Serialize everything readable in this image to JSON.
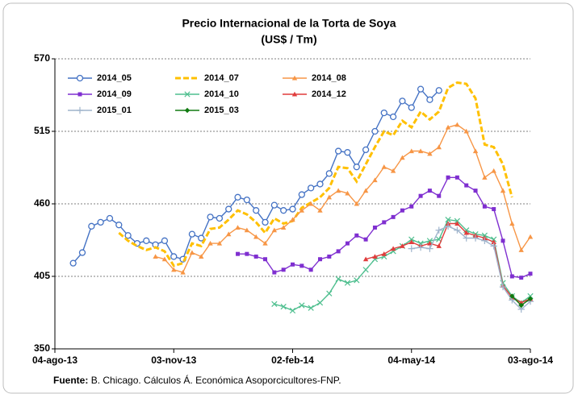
{
  "chart_data": {
    "type": "line",
    "title": "Precio Internacional de la Torta de Soya",
    "subtitle": "(US$ / Tm)",
    "source_label": "Fuente:",
    "source": "B. Chicago. Cálculos Á. Económica Asoporcicultores-FNP.",
    "x": [
      "2013-08-18",
      "2013-08-25",
      "2013-09-01",
      "2013-09-08",
      "2013-09-15",
      "2013-09-22",
      "2013-09-29",
      "2013-10-06",
      "2013-10-13",
      "2013-10-20",
      "2013-10-27",
      "2013-11-03",
      "2013-11-10",
      "2013-11-17",
      "2013-11-24",
      "2013-12-01",
      "2013-12-08",
      "2013-12-15",
      "2013-12-22",
      "2013-12-29",
      "2014-01-05",
      "2014-01-12",
      "2014-01-19",
      "2014-01-26",
      "2014-02-02",
      "2014-02-09",
      "2014-02-16",
      "2014-02-23",
      "2014-03-02",
      "2014-03-09",
      "2014-03-16",
      "2014-03-23",
      "2014-03-30",
      "2014-04-06",
      "2014-04-13",
      "2014-04-20",
      "2014-04-27",
      "2014-05-04",
      "2014-05-11",
      "2014-05-18",
      "2014-05-25",
      "2014-06-01",
      "2014-06-08",
      "2014-06-15",
      "2014-06-22",
      "2014-06-29",
      "2014-07-06",
      "2014-07-13",
      "2014-07-20",
      "2014-07-27",
      "2014-08-03"
    ],
    "xlim": [
      "2013-08-04",
      "2014-08-03"
    ],
    "xticks": [
      {
        "value": "2013-08-04",
        "label": "04-ago-13"
      },
      {
        "value": "2013-11-03",
        "label": "03-nov-13"
      },
      {
        "value": "2014-02-02",
        "label": "02-feb-14"
      },
      {
        "value": "2014-05-04",
        "label": "04-may-14"
      },
      {
        "value": "2014-08-03",
        "label": "03-ago-14"
      }
    ],
    "ylim": [
      350,
      570
    ],
    "yticks": [
      350,
      405,
      460,
      515,
      570
    ],
    "grid": true,
    "legend": "top-left",
    "series": [
      {
        "name": "2014_05",
        "color": "#4472c4",
        "marker": "circle",
        "dashed": false,
        "values": [
          415,
          423,
          443,
          446,
          449,
          444,
          436,
          430,
          432,
          429,
          432,
          420,
          418,
          437,
          434,
          450,
          449,
          456,
          465,
          463,
          455,
          446,
          459,
          455,
          456,
          467,
          472,
          475,
          483,
          500,
          499,
          488,
          501,
          515,
          529,
          526,
          538,
          533,
          547,
          539,
          546,
          null,
          null,
          null,
          null,
          null,
          null,
          null,
          null,
          null,
          null
        ]
      },
      {
        "name": "2014_07",
        "color": "#ffc000",
        "marker": "none",
        "dashed": true,
        "values": [
          null,
          null,
          null,
          null,
          null,
          438,
          432,
          428,
          425,
          427,
          424,
          413,
          415,
          430,
          428,
          441,
          442,
          448,
          455,
          452,
          446,
          438,
          449,
          445,
          447,
          457,
          461,
          465,
          472,
          488,
          487,
          477,
          490,
          503,
          515,
          512,
          523,
          518,
          530,
          524,
          530,
          548,
          552,
          551,
          540,
          505,
          503,
          490,
          465,
          null,
          null
        ]
      },
      {
        "name": "2014_08",
        "color": "#f79646",
        "marker": "triangle",
        "dashed": false,
        "values": [
          null,
          null,
          null,
          null,
          null,
          null,
          null,
          null,
          null,
          420,
          418,
          410,
          408,
          423,
          420,
          430,
          430,
          437,
          442,
          440,
          435,
          430,
          440,
          442,
          448,
          455,
          460,
          455,
          465,
          470,
          468,
          460,
          470,
          478,
          488,
          485,
          495,
          500,
          500,
          498,
          503,
          518,
          520,
          515,
          500,
          480,
          485,
          470,
          445,
          425,
          435
        ]
      },
      {
        "name": "2014_09",
        "color": "#7f2fd0",
        "marker": "square",
        "dashed": false,
        "values": [
          null,
          null,
          null,
          null,
          null,
          null,
          null,
          null,
          null,
          null,
          null,
          null,
          null,
          null,
          null,
          null,
          null,
          null,
          422,
          422,
          420,
          418,
          408,
          410,
          414,
          413,
          410,
          418,
          420,
          424,
          430,
          436,
          433,
          442,
          446,
          450,
          455,
          458,
          466,
          470,
          466,
          480,
          480,
          474,
          470,
          458,
          456,
          432,
          405,
          404,
          407
        ]
      },
      {
        "name": "2014_10",
        "color": "#4fbf8f",
        "marker": "x",
        "dashed": false,
        "values": [
          null,
          null,
          null,
          null,
          null,
          null,
          null,
          null,
          null,
          null,
          null,
          null,
          null,
          null,
          null,
          null,
          null,
          null,
          null,
          null,
          null,
          null,
          384,
          382,
          379,
          383,
          381,
          385,
          392,
          403,
          400,
          402,
          410,
          418,
          420,
          424,
          428,
          433,
          430,
          432,
          433,
          448,
          447,
          440,
          437,
          436,
          433,
          400,
          390,
          385,
          390
        ]
      },
      {
        "name": "2014_12",
        "color": "#e03c3c",
        "marker": "triangle",
        "dashed": false,
        "values": [
          null,
          null,
          null,
          null,
          null,
          null,
          null,
          null,
          null,
          null,
          null,
          null,
          null,
          null,
          null,
          null,
          null,
          null,
          null,
          null,
          null,
          null,
          null,
          null,
          null,
          null,
          null,
          null,
          null,
          null,
          null,
          null,
          418,
          420,
          422,
          426,
          428,
          431,
          428,
          430,
          428,
          445,
          445,
          438,
          436,
          434,
          431,
          398,
          389,
          385,
          388
        ]
      },
      {
        "name": "2015_01",
        "color": "#9fb4cc",
        "marker": "plus",
        "dashed": false,
        "values": [
          null,
          null,
          null,
          null,
          null,
          null,
          null,
          null,
          null,
          null,
          null,
          null,
          null,
          null,
          null,
          null,
          null,
          null,
          null,
          null,
          null,
          null,
          null,
          null,
          null,
          null,
          null,
          null,
          null,
          null,
          null,
          null,
          null,
          null,
          null,
          null,
          null,
          426,
          427,
          426,
          440,
          443,
          440,
          434,
          434,
          432,
          428,
          397,
          387,
          380,
          386
        ]
      },
      {
        "name": "2015_03",
        "color": "#107a10",
        "marker": "diamond",
        "dashed": false,
        "values": [
          null,
          null,
          null,
          null,
          null,
          null,
          null,
          null,
          null,
          null,
          null,
          null,
          null,
          null,
          null,
          null,
          null,
          null,
          null,
          null,
          null,
          null,
          null,
          null,
          null,
          null,
          null,
          null,
          null,
          null,
          null,
          null,
          null,
          null,
          null,
          null,
          null,
          null,
          null,
          null,
          null,
          null,
          null,
          null,
          null,
          null,
          null,
          null,
          390,
          383,
          388
        ]
      }
    ]
  }
}
